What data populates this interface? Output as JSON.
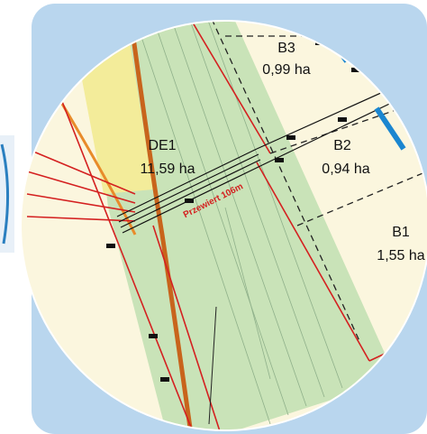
{
  "parcels": [
    {
      "name": "B3",
      "area": "0,99 ha"
    },
    {
      "name": "B2",
      "area": "0,94 ha"
    },
    {
      "name": "DE1",
      "area": "11,59 ha"
    },
    {
      "name": "B1",
      "area": "1,55 ha"
    }
  ],
  "annotation": "Przewiert 106m"
}
